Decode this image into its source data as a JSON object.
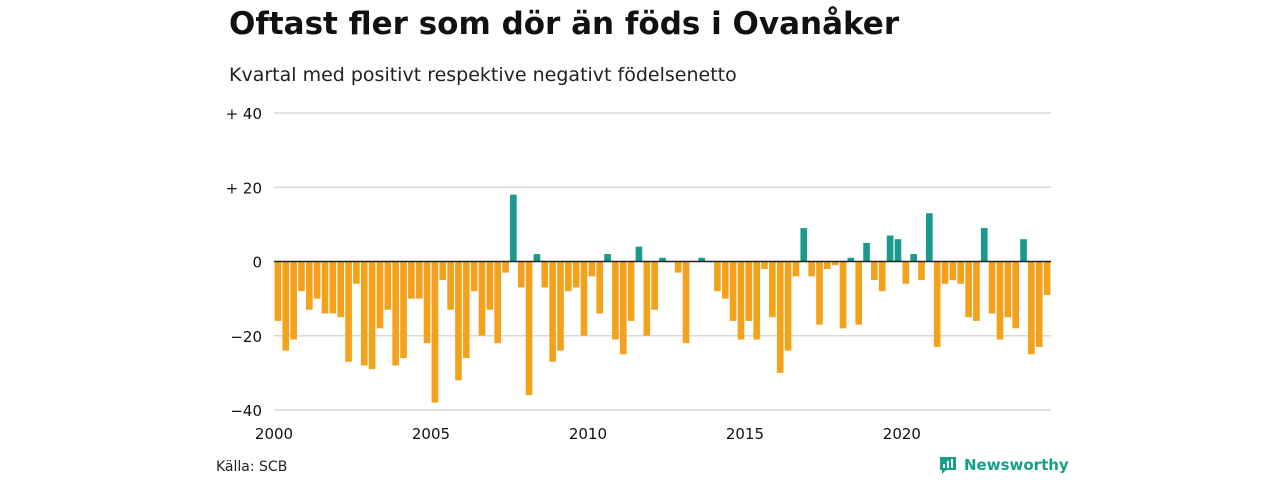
{
  "title": "Oftast fler som dör än föds i Ovanåker",
  "subtitle": "Kvartal med positivt respektive negativt födelsenetto",
  "source": "Källa: SCB",
  "brand": {
    "name": "Newsworthy",
    "icon": "newsworthy-logo-icon"
  },
  "colors": {
    "positive": "#1a9a8a",
    "negative": "#f4a21c",
    "grid": "#d9d9d9",
    "zero": "#222222"
  },
  "chart_data": {
    "type": "bar",
    "x_axis": {
      "type": "date-quarterly",
      "start": "2000-Q1",
      "end": "2024-Q3",
      "range": [
        2000,
        2024.75
      ],
      "ticks": [
        "2000",
        "2005",
        "2010",
        "2015",
        "2020"
      ]
    },
    "y_axis": {
      "ylim": [
        -40,
        40
      ],
      "ticks": [
        "+ 40",
        "+ 20",
        "0",
        "−20",
        "−40"
      ]
    },
    "grid": true,
    "legend": "none",
    "categories": [
      "2000-Q1",
      "2000-Q2",
      "2000-Q3",
      "2000-Q4",
      "2001-Q1",
      "2001-Q2",
      "2001-Q3",
      "2001-Q4",
      "2002-Q1",
      "2002-Q2",
      "2002-Q3",
      "2002-Q4",
      "2003-Q1",
      "2003-Q2",
      "2003-Q3",
      "2003-Q4",
      "2004-Q1",
      "2004-Q2",
      "2004-Q3",
      "2004-Q4",
      "2005-Q1",
      "2005-Q2",
      "2005-Q3",
      "2005-Q4",
      "2006-Q1",
      "2006-Q2",
      "2006-Q3",
      "2006-Q4",
      "2007-Q1",
      "2007-Q2",
      "2007-Q3",
      "2007-Q4",
      "2008-Q1",
      "2008-Q2",
      "2008-Q3",
      "2008-Q4",
      "2009-Q1",
      "2009-Q2",
      "2009-Q3",
      "2009-Q4",
      "2010-Q1",
      "2010-Q2",
      "2010-Q3",
      "2010-Q4",
      "2011-Q1",
      "2011-Q2",
      "2011-Q3",
      "2011-Q4",
      "2012-Q1",
      "2012-Q2",
      "2012-Q3",
      "2012-Q4",
      "2013-Q1",
      "2013-Q2",
      "2013-Q3",
      "2013-Q4",
      "2014-Q1",
      "2014-Q2",
      "2014-Q3",
      "2014-Q4",
      "2015-Q1",
      "2015-Q2",
      "2015-Q3",
      "2015-Q4",
      "2016-Q1",
      "2016-Q2",
      "2016-Q3",
      "2016-Q4",
      "2017-Q1",
      "2017-Q2",
      "2017-Q3",
      "2017-Q4",
      "2018-Q1",
      "2018-Q2",
      "2018-Q3",
      "2018-Q4",
      "2019-Q1",
      "2019-Q2",
      "2019-Q3",
      "2019-Q4",
      "2020-Q1",
      "2020-Q2",
      "2020-Q3",
      "2020-Q4",
      "2021-Q1",
      "2021-Q2",
      "2021-Q3",
      "2021-Q4",
      "2022-Q1",
      "2022-Q2",
      "2022-Q3",
      "2022-Q4",
      "2023-Q1",
      "2023-Q2",
      "2023-Q3",
      "2023-Q4",
      "2024-Q1",
      "2024-Q2",
      "2024-Q3"
    ],
    "values": [
      -16,
      -24,
      -21,
      -8,
      -13,
      -10,
      -14,
      -14,
      -15,
      -27,
      -6,
      -28,
      -29,
      -18,
      -13,
      -28,
      -26,
      -10,
      -10,
      -22,
      -38,
      -5,
      -13,
      -32,
      -26,
      -8,
      -20,
      -13,
      -22,
      -3,
      18,
      -7,
      -36,
      2,
      -7,
      -27,
      -24,
      -8,
      -7,
      -20,
      -4,
      -14,
      2,
      -21,
      -25,
      -16,
      4,
      -20,
      -13,
      1,
      0,
      -3,
      -22,
      0,
      1,
      0,
      -8,
      -10,
      -16,
      -21,
      -16,
      -21,
      -2,
      -15,
      -30,
      -24,
      -4,
      9,
      -4,
      -17,
      -2,
      -1,
      -18,
      1,
      -17,
      5,
      -5,
      -8,
      7,
      6,
      -6,
      2,
      -5,
      13,
      -23,
      -6,
      -5,
      -6,
      -15,
      -16,
      9,
      -14,
      -21,
      -15,
      -18,
      6,
      -25,
      -23,
      -9
    ]
  }
}
